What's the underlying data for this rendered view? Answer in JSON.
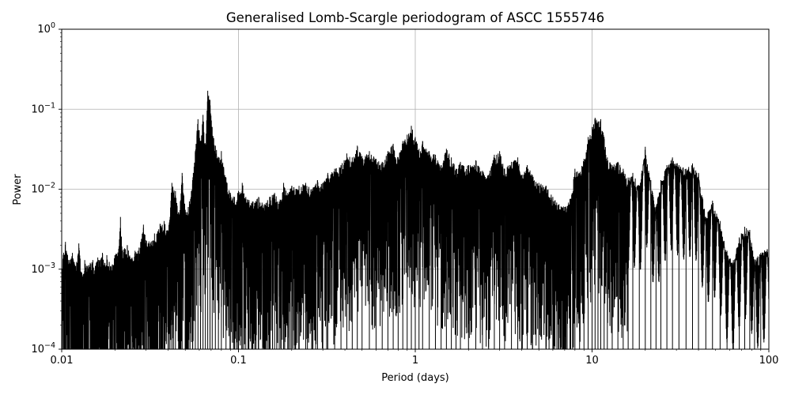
{
  "chart_data": {
    "type": "line",
    "title": "Generalised Lomb-Scargle periodogram of ASCC 1555746",
    "xlabel": "Period (days)",
    "ylabel": "Power",
    "xscale": "log",
    "yscale": "log",
    "xlim": [
      0.01,
      100
    ],
    "ylim": [
      0.0001,
      1
    ],
    "grid": "major",
    "x_ticks": [
      {
        "value": 0.01,
        "label": "0.01"
      },
      {
        "value": 0.1,
        "label": "0.1"
      },
      {
        "value": 1,
        "label": "1"
      },
      {
        "value": 10,
        "label": "10"
      },
      {
        "value": 100,
        "label": "100"
      }
    ],
    "y_ticks": [
      {
        "value": 0.0001,
        "base": "10",
        "exp": "−4"
      },
      {
        "value": 0.001,
        "base": "10",
        "exp": "−3"
      },
      {
        "value": 0.01,
        "base": "10",
        "exp": "−2"
      },
      {
        "value": 0.1,
        "base": "10",
        "exp": "−1"
      },
      {
        "value": 1,
        "base": "10",
        "exp": "0"
      }
    ],
    "line_color": "#000000",
    "series": [
      {
        "points": [
          [
            0.01,
            0.0012
          ],
          [
            0.0105,
            0.0022
          ],
          [
            0.011,
            0.0013
          ],
          [
            0.0115,
            0.0016
          ],
          [
            0.012,
            0.0011
          ],
          [
            0.0125,
            0.0021
          ],
          [
            0.013,
            0.0009
          ],
          [
            0.0135,
            0.0013
          ],
          [
            0.014,
            0.0011
          ],
          [
            0.0145,
            0.0012
          ],
          [
            0.015,
            0.0013
          ],
          [
            0.0155,
            0.0011
          ],
          [
            0.016,
            0.0014
          ],
          [
            0.0165,
            0.0013
          ],
          [
            0.017,
            0.0016
          ],
          [
            0.0175,
            0.0012
          ],
          [
            0.018,
            0.0015
          ],
          [
            0.019,
            0.0011
          ],
          [
            0.02,
            0.0015
          ],
          [
            0.021,
            0.0018
          ],
          [
            0.0215,
            0.0045
          ],
          [
            0.022,
            0.0017
          ],
          [
            0.0235,
            0.002
          ],
          [
            0.025,
            0.0014
          ],
          [
            0.026,
            0.0017
          ],
          [
            0.027,
            0.0017
          ],
          [
            0.028,
            0.0022
          ],
          [
            0.029,
            0.0036
          ],
          [
            0.03,
            0.0023
          ],
          [
            0.032,
            0.0022
          ],
          [
            0.0335,
            0.0028
          ],
          [
            0.035,
            0.003
          ],
          [
            0.036,
            0.0037
          ],
          [
            0.038,
            0.004
          ],
          [
            0.04,
            0.003
          ],
          [
            0.042,
            0.012
          ],
          [
            0.044,
            0.0095
          ],
          [
            0.046,
            0.0048
          ],
          [
            0.048,
            0.016
          ],
          [
            0.05,
            0.0055
          ],
          [
            0.052,
            0.006
          ],
          [
            0.055,
            0.013
          ],
          [
            0.057,
            0.03
          ],
          [
            0.059,
            0.075
          ],
          [
            0.061,
            0.04
          ],
          [
            0.063,
            0.085
          ],
          [
            0.065,
            0.035
          ],
          [
            0.067,
            0.17
          ],
          [
            0.069,
            0.13
          ],
          [
            0.071,
            0.06
          ],
          [
            0.074,
            0.035
          ],
          [
            0.077,
            0.025
          ],
          [
            0.08,
            0.03
          ],
          [
            0.085,
            0.014
          ],
          [
            0.09,
            0.009
          ],
          [
            0.095,
            0.008
          ],
          [
            0.1,
            0.0095
          ],
          [
            0.105,
            0.012
          ],
          [
            0.11,
            0.008
          ],
          [
            0.12,
            0.007
          ],
          [
            0.13,
            0.008
          ],
          [
            0.14,
            0.0065
          ],
          [
            0.15,
            0.008
          ],
          [
            0.16,
            0.009
          ],
          [
            0.17,
            0.007
          ],
          [
            0.18,
            0.012
          ],
          [
            0.19,
            0.009
          ],
          [
            0.2,
            0.011
          ],
          [
            0.22,
            0.011
          ],
          [
            0.24,
            0.012
          ],
          [
            0.26,
            0.01
          ],
          [
            0.28,
            0.013
          ],
          [
            0.3,
            0.012
          ],
          [
            0.32,
            0.016
          ],
          [
            0.35,
            0.018
          ],
          [
            0.38,
            0.02
          ],
          [
            0.41,
            0.028
          ],
          [
            0.44,
            0.025
          ],
          [
            0.47,
            0.035
          ],
          [
            0.5,
            0.026
          ],
          [
            0.55,
            0.03
          ],
          [
            0.6,
            0.024
          ],
          [
            0.65,
            0.022
          ],
          [
            0.7,
            0.03
          ],
          [
            0.75,
            0.037
          ],
          [
            0.8,
            0.025
          ],
          [
            0.85,
            0.04
          ],
          [
            0.9,
            0.048
          ],
          [
            0.95,
            0.062
          ],
          [
            1.0,
            0.045
          ],
          [
            1.05,
            0.032
          ],
          [
            1.1,
            0.04
          ],
          [
            1.2,
            0.03
          ],
          [
            1.3,
            0.027
          ],
          [
            1.4,
            0.02
          ],
          [
            1.5,
            0.032
          ],
          [
            1.6,
            0.025
          ],
          [
            1.7,
            0.018
          ],
          [
            1.8,
            0.022
          ],
          [
            2.0,
            0.02
          ],
          [
            2.2,
            0.023
          ],
          [
            2.4,
            0.017
          ],
          [
            2.6,
            0.015
          ],
          [
            2.8,
            0.027
          ],
          [
            3.0,
            0.03
          ],
          [
            3.2,
            0.018
          ],
          [
            3.5,
            0.022
          ],
          [
            3.8,
            0.025
          ],
          [
            4.0,
            0.015
          ],
          [
            4.3,
            0.02
          ],
          [
            4.6,
            0.015
          ],
          [
            5.0,
            0.012
          ],
          [
            5.5,
            0.011
          ],
          [
            6.0,
            0.008
          ],
          [
            6.5,
            0.0065
          ],
          [
            7.0,
            0.006
          ],
          [
            7.5,
            0.0075
          ],
          [
            8.0,
            0.018
          ],
          [
            8.5,
            0.016
          ],
          [
            9.0,
            0.024
          ],
          [
            9.5,
            0.045
          ],
          [
            10.0,
            0.06
          ],
          [
            10.4,
            0.078
          ],
          [
            10.8,
            0.07
          ],
          [
            11.2,
            0.075
          ],
          [
            11.7,
            0.045
          ],
          [
            12.2,
            0.025
          ],
          [
            13.0,
            0.02
          ],
          [
            14.0,
            0.022
          ],
          [
            15.0,
            0.018
          ],
          [
            16.0,
            0.014
          ],
          [
            17.0,
            0.016
          ],
          [
            18.5,
            0.011
          ],
          [
            20.0,
            0.034
          ],
          [
            21.5,
            0.013
          ],
          [
            23.0,
            0.006
          ],
          [
            24.5,
            0.013
          ],
          [
            26.5,
            0.02
          ],
          [
            28.5,
            0.025
          ],
          [
            31.0,
            0.02
          ],
          [
            34.0,
            0.018
          ],
          [
            37.0,
            0.021
          ],
          [
            40.0,
            0.016
          ],
          [
            44.0,
            0.0045
          ],
          [
            48.0,
            0.0072
          ],
          [
            53.0,
            0.004
          ],
          [
            58.0,
            0.0017
          ],
          [
            63.0,
            0.0013
          ],
          [
            68.0,
            0.0025
          ],
          [
            73.0,
            0.0034
          ],
          [
            78.0,
            0.0031
          ],
          [
            83.0,
            0.0013
          ],
          [
            90.0,
            0.0016
          ],
          [
            100.0,
            0.0019
          ]
        ]
      }
    ]
  }
}
